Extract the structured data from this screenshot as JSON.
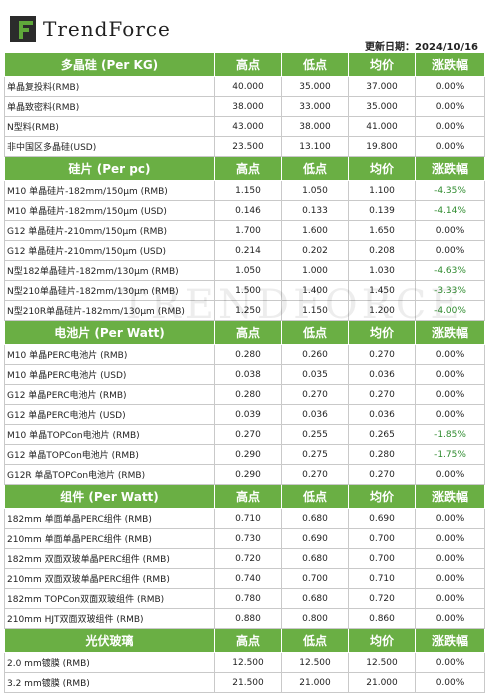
{
  "brand": {
    "name": "TrendForce"
  },
  "update_label": "更新日期：",
  "update_date": "2024/10/16",
  "watermark": "TRENDFORCE",
  "col_headers": [
    "高点",
    "低点",
    "均价",
    "涨跌幅"
  ],
  "sections": [
    {
      "title": "多晶硅 (Per KG)",
      "rows": [
        [
          "单晶复投料(RMB)",
          "40.000",
          "35.000",
          "37.000",
          "0.00%"
        ],
        [
          "单晶致密料(RMB)",
          "38.000",
          "33.000",
          "35.000",
          "0.00%"
        ],
        [
          "N型料(RMB)",
          "43.000",
          "38.000",
          "41.000",
          "0.00%"
        ],
        [
          "非中国区多晶硅(USD)",
          "23.500",
          "13.100",
          "19.800",
          "0.00%"
        ]
      ]
    },
    {
      "title": "硅片 (Per pc)",
      "rows": [
        [
          "M10 单晶硅片-182mm/150μm (RMB)",
          "1.150",
          "1.050",
          "1.100",
          "-4.35%"
        ],
        [
          "M10 单晶硅片-182mm/150μm (USD)",
          "0.146",
          "0.133",
          "0.139",
          "-4.14%"
        ],
        [
          "G12 单晶硅片-210mm/150μm  (RMB)",
          "1.700",
          "1.600",
          "1.650",
          "0.00%"
        ],
        [
          "G12 单晶硅片-210mm/150μm  (USD)",
          "0.214",
          "0.202",
          "0.208",
          "0.00%"
        ],
        [
          "N型182单晶硅片-182mm/130μm (RMB)",
          "1.050",
          "1.000",
          "1.030",
          "-4.63%"
        ],
        [
          "N型210单晶硅片-182mm/130μm (RMB)",
          "1.500",
          "1.400",
          "1.450",
          "-3.33%"
        ],
        [
          "N型210R单晶硅片-182mm/130μm (RMB)",
          "1.250",
          "1.150",
          "1.200",
          "-4.00%"
        ]
      ]
    },
    {
      "title": "电池片 (Per Watt)",
      "rows": [
        [
          "M10 单晶PERC电池片 (RMB)",
          "0.280",
          "0.260",
          "0.270",
          "0.00%"
        ],
        [
          "M10 单晶PERC电池片 (USD)",
          "0.038",
          "0.035",
          "0.036",
          "0.00%"
        ],
        [
          "G12 单晶PERC电池片 (RMB)",
          "0.280",
          "0.270",
          "0.270",
          "0.00%"
        ],
        [
          "G12 单晶PERC电池片 (USD)",
          "0.039",
          "0.036",
          "0.036",
          "0.00%"
        ],
        [
          "M10 单晶TOPCon电池片 (RMB)",
          "0.270",
          "0.255",
          "0.265",
          "-1.85%"
        ],
        [
          "G12 单晶TOPCon电池片 (RMB)",
          "0.290",
          "0.275",
          "0.280",
          "-1.75%"
        ],
        [
          "G12R 单晶TOPCon电池片 (RMB)",
          "0.290",
          "0.270",
          "0.270",
          "0.00%"
        ]
      ]
    },
    {
      "title": "组件 (Per Watt)",
      "rows": [
        [
          "182mm 单面单晶PERC组件 (RMB)",
          "0.710",
          "0.680",
          "0.690",
          "0.00%"
        ],
        [
          "210mm 单面单晶PERC组件 (RMB)",
          "0.730",
          "0.690",
          "0.700",
          "0.00%"
        ],
        [
          "182mm 双面双玻单晶PERC组件 (RMB)",
          "0.720",
          "0.680",
          "0.700",
          "0.00%"
        ],
        [
          "210mm 双面双玻单晶PERC组件 (RMB)",
          "0.740",
          "0.700",
          "0.710",
          "0.00%"
        ],
        [
          "182mm TOPCon双面双玻组件 (RMB)",
          "0.780",
          "0.680",
          "0.720",
          "0.00%"
        ],
        [
          "210mm HJT双面双玻组件 (RMB)",
          "0.880",
          "0.800",
          "0.860",
          "0.00%"
        ]
      ]
    },
    {
      "title": "光伏玻璃",
      "rows": [
        [
          "2.0 mm镀膜 (RMB)",
          "12.500",
          "12.500",
          "12.500",
          "0.00%"
        ],
        [
          "3.2 mm镀膜 (RMB)",
          "21.500",
          "21.000",
          "21.000",
          "0.00%"
        ]
      ]
    }
  ],
  "colors": {
    "header_green": "#6aaf44",
    "change_green": "#2e8b2e"
  }
}
